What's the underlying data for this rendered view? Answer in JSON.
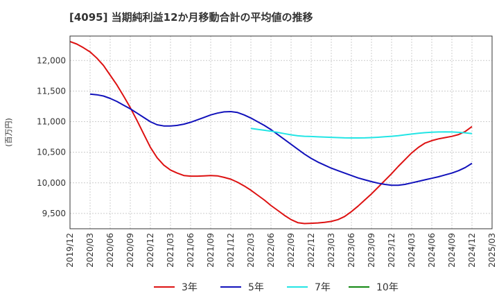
{
  "chart_data": {
    "type": "line",
    "title": "[4095]  当期純利益12か月移動合計の平均値の推移",
    "ylabel": "(百万円)",
    "xlabel": "",
    "ylim": [
      9250,
      12400
    ],
    "yticks": [
      9500,
      10000,
      10500,
      11000,
      11500,
      12000
    ],
    "ytick_labels": [
      "9,500",
      "10,000",
      "10,500",
      "11,000",
      "11,500",
      "12,000"
    ],
    "x_start": "2019/12",
    "xticks": [
      "2019/12",
      "2020/03",
      "2020/06",
      "2020/09",
      "2020/12",
      "2021/03",
      "2021/06",
      "2021/09",
      "2021/12",
      "2022/03",
      "2022/06",
      "2022/09",
      "2022/12",
      "2023/03",
      "2023/06",
      "2023/09",
      "2023/12",
      "2024/03",
      "2024/06",
      "2024/09",
      "2024/12",
      "2025/03"
    ],
    "grid": true,
    "legend_position": "bottom",
    "series": [
      {
        "name": "3年",
        "color": "#dd1111",
        "x": [
          "2019/12",
          "2020/01",
          "2020/02",
          "2020/03",
          "2020/04",
          "2020/05",
          "2020/06",
          "2020/07",
          "2020/08",
          "2020/09",
          "2020/10",
          "2020/11",
          "2020/12",
          "2021/01",
          "2021/02",
          "2021/03",
          "2021/04",
          "2021/05",
          "2021/06",
          "2021/07",
          "2021/08",
          "2021/09",
          "2021/10",
          "2021/11",
          "2021/12",
          "2022/01",
          "2022/02",
          "2022/03",
          "2022/04",
          "2022/05",
          "2022/06",
          "2022/07",
          "2022/08",
          "2022/09",
          "2022/10",
          "2022/11",
          "2022/12",
          "2023/01",
          "2023/02",
          "2023/03",
          "2023/04",
          "2023/05",
          "2023/06",
          "2023/07",
          "2023/08",
          "2023/09",
          "2023/10",
          "2023/11",
          "2023/12",
          "2024/01",
          "2024/02",
          "2024/03",
          "2024/04",
          "2024/05",
          "2024/06",
          "2024/07",
          "2024/08",
          "2024/09",
          "2024/10",
          "2024/11",
          "2024/12"
        ],
        "values": [
          12310,
          12270,
          12210,
          12140,
          12040,
          11920,
          11760,
          11600,
          11420,
          11230,
          11020,
          10800,
          10580,
          10410,
          10290,
          10210,
          10160,
          10120,
          10110,
          10110,
          10115,
          10120,
          10115,
          10090,
          10060,
          10010,
          9950,
          9880,
          9800,
          9720,
          9630,
          9550,
          9470,
          9400,
          9350,
          9335,
          9340,
          9345,
          9355,
          9370,
          9400,
          9450,
          9530,
          9620,
          9720,
          9820,
          9930,
          10040,
          10150,
          10270,
          10380,
          10490,
          10580,
          10650,
          10690,
          10720,
          10740,
          10760,
          10790,
          10840,
          10920
        ]
      },
      {
        "name": "5年",
        "color": "#1111bb",
        "x": [
          "2020/03",
          "2020/04",
          "2020/05",
          "2020/06",
          "2020/07",
          "2020/08",
          "2020/09",
          "2020/10",
          "2020/11",
          "2020/12",
          "2021/01",
          "2021/02",
          "2021/03",
          "2021/04",
          "2021/05",
          "2021/06",
          "2021/07",
          "2021/08",
          "2021/09",
          "2021/10",
          "2021/11",
          "2021/12",
          "2022/01",
          "2022/02",
          "2022/03",
          "2022/04",
          "2022/05",
          "2022/06",
          "2022/07",
          "2022/08",
          "2022/09",
          "2022/10",
          "2022/11",
          "2022/12",
          "2023/01",
          "2023/02",
          "2023/03",
          "2023/04",
          "2023/05",
          "2023/06",
          "2023/07",
          "2023/08",
          "2023/09",
          "2023/10",
          "2023/11",
          "2023/12",
          "2024/01",
          "2024/02",
          "2024/03",
          "2024/04",
          "2024/05",
          "2024/06",
          "2024/07",
          "2024/08",
          "2024/09",
          "2024/10",
          "2024/11",
          "2024/12"
        ],
        "values": [
          11450,
          11440,
          11420,
          11380,
          11330,
          11270,
          11210,
          11140,
          11070,
          11000,
          10950,
          10930,
          10930,
          10940,
          10960,
          10990,
          11030,
          11070,
          11110,
          11140,
          11160,
          11165,
          11150,
          11110,
          11060,
          11000,
          10940,
          10870,
          10790,
          10710,
          10630,
          10550,
          10470,
          10400,
          10340,
          10290,
          10240,
          10200,
          10160,
          10120,
          10080,
          10050,
          10020,
          9995,
          9975,
          9960,
          9960,
          9975,
          10000,
          10025,
          10050,
          10075,
          10100,
          10130,
          10160,
          10200,
          10250,
          10320
        ]
      },
      {
        "name": "7年",
        "color": "#22e5e5",
        "x": [
          "2022/03",
          "2022/04",
          "2022/05",
          "2022/06",
          "2022/07",
          "2022/08",
          "2022/09",
          "2022/10",
          "2022/11",
          "2022/12",
          "2023/01",
          "2023/02",
          "2023/03",
          "2023/04",
          "2023/05",
          "2023/06",
          "2023/07",
          "2023/08",
          "2023/09",
          "2023/10",
          "2023/11",
          "2023/12",
          "2024/01",
          "2024/02",
          "2024/03",
          "2024/04",
          "2024/05",
          "2024/06",
          "2024/07",
          "2024/08",
          "2024/09",
          "2024/10",
          "2024/11",
          "2024/12"
        ],
        "values": [
          10890,
          10875,
          10860,
          10845,
          10825,
          10805,
          10785,
          10770,
          10762,
          10758,
          10752,
          10748,
          10744,
          10740,
          10736,
          10734,
          10734,
          10736,
          10740,
          10746,
          10754,
          10762,
          10772,
          10785,
          10798,
          10810,
          10820,
          10828,
          10832,
          10834,
          10832,
          10826,
          10818,
          10805
        ]
      },
      {
        "name": "10年",
        "color": "#118811",
        "x": [],
        "values": []
      }
    ]
  }
}
